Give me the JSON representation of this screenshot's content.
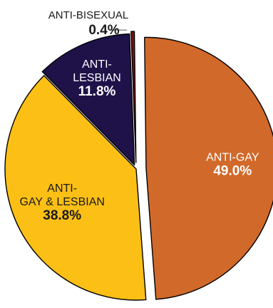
{
  "chart_data": {
    "type": "pie",
    "slices": [
      {
        "label_lines": [
          "ANTI-GAY"
        ],
        "value": 49.0,
        "value_label": "49.0%",
        "color": "#D1692A",
        "text_color": "#ffffff"
      },
      {
        "label_lines": [
          "ANTI-",
          "GAY & LESBIAN"
        ],
        "value": 38.8,
        "value_label": "38.8%",
        "color": "#FBBF16",
        "text_color": "#1a1a1a"
      },
      {
        "label_lines": [
          "ANTI-",
          "LESBIAN"
        ],
        "value": 11.8,
        "value_label": "11.8%",
        "color": "#1F1249",
        "text_color": "#ffffff"
      },
      {
        "label_lines": [
          "ANTI-BISEXUAL"
        ],
        "value": 0.4,
        "value_label": "0.4%",
        "color": "#7A1018",
        "text_color": "#1a1a1a"
      }
    ]
  }
}
